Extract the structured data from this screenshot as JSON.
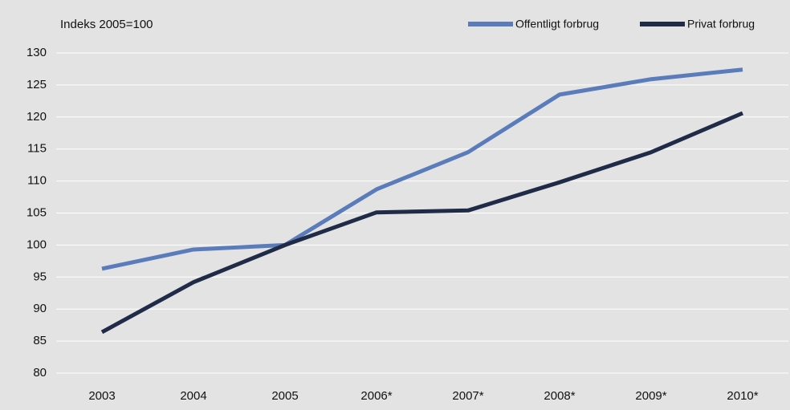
{
  "chart_data": {
    "type": "line",
    "y_axis_label": "Indeks 2005=100",
    "categories": [
      "2003",
      "2004",
      "2005",
      "2006*",
      "2007*",
      "2008*",
      "2009*",
      "2010*"
    ],
    "series": [
      {
        "name": "Offentligt forbrug",
        "color": "#5a7cba",
        "values": [
          96.3,
          99.3,
          100,
          108.7,
          114.5,
          123.5,
          125.9,
          127.4
        ]
      },
      {
        "name": "Privat forbrug",
        "color": "#1f2b47",
        "values": [
          86.4,
          94.2,
          100,
          105.1,
          105.4,
          109.8,
          114.5,
          120.6
        ]
      }
    ],
    "ylim": [
      80,
      130
    ],
    "yticks": [
      80,
      85,
      90,
      95,
      100,
      105,
      110,
      115,
      120,
      125,
      130
    ],
    "grid": true,
    "legend": "top-right"
  }
}
